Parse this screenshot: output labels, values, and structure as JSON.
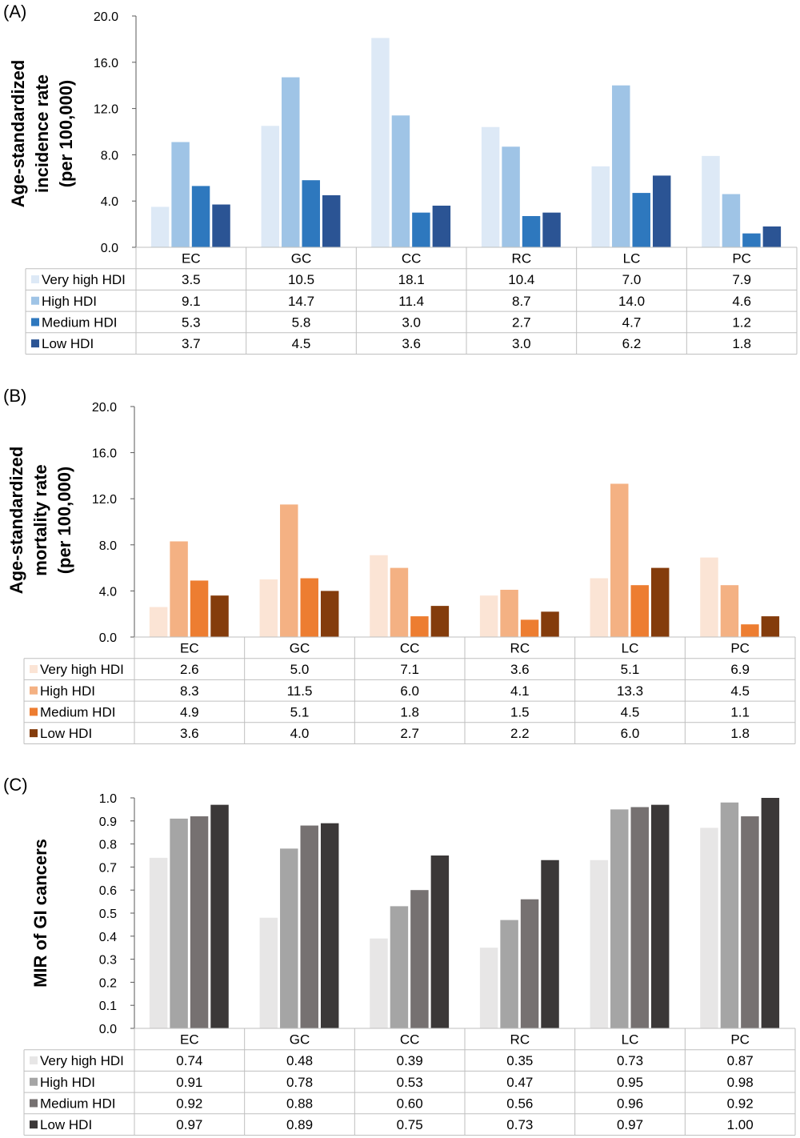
{
  "chart_data": [
    {
      "panel": "(A)",
      "type": "bar",
      "categories": [
        "EC",
        "GC",
        "CC",
        "RC",
        "LC",
        "PC"
      ],
      "ylabel_lines": [
        "Age-standardized",
        "incidence rate",
        "(per 100,000)"
      ],
      "ylim": [
        0,
        20
      ],
      "yticks": [
        "0.0",
        "4.0",
        "8.0",
        "12.0",
        "16.0",
        "20.0"
      ],
      "grid": false,
      "legend": "data-table",
      "series": [
        {
          "name": "Very high HDI",
          "color": "#dde9f6",
          "values": [
            3.5,
            10.5,
            18.1,
            10.4,
            7.0,
            7.9
          ],
          "labels": [
            "3.5",
            "10.5",
            "18.1",
            "10.4",
            "7.0",
            "7.9"
          ]
        },
        {
          "name": "High HDI",
          "color": "#9fc4e6",
          "values": [
            9.1,
            14.7,
            11.4,
            8.7,
            14.0,
            4.6
          ],
          "labels": [
            "9.1",
            "14.7",
            "11.4",
            "8.7",
            "14.0",
            "4.6"
          ]
        },
        {
          "name": "Medium HDI",
          "color": "#2e78be",
          "values": [
            5.3,
            5.8,
            3.0,
            2.7,
            4.7,
            1.2
          ],
          "labels": [
            "5.3",
            "5.8",
            "3.0",
            "2.7",
            "4.7",
            "1.2"
          ]
        },
        {
          "name": "Low HDI",
          "color": "#2b5494",
          "values": [
            3.7,
            4.5,
            3.6,
            3.0,
            6.2,
            1.8
          ],
          "labels": [
            "3.7",
            "4.5",
            "3.6",
            "3.0",
            "6.2",
            "1.8"
          ]
        }
      ]
    },
    {
      "panel": "(B)",
      "type": "bar",
      "categories": [
        "EC",
        "GC",
        "CC",
        "RC",
        "LC",
        "PC"
      ],
      "ylabel_lines": [
        "Age-standardized",
        "mortality rate",
        "(per 100,000)"
      ],
      "ylim": [
        0,
        20
      ],
      "yticks": [
        "0.0",
        "4.0",
        "8.0",
        "12.0",
        "16.0",
        "20.0"
      ],
      "grid": false,
      "legend": "data-table",
      "series": [
        {
          "name": "Very high HDI",
          "color": "#fbe4d5",
          "values": [
            2.6,
            5.0,
            7.1,
            3.6,
            5.1,
            6.9
          ],
          "labels": [
            "2.6",
            "5.0",
            "7.1",
            "3.6",
            "5.1",
            "6.9"
          ]
        },
        {
          "name": "High HDI",
          "color": "#f4b183",
          "values": [
            8.3,
            11.5,
            6.0,
            4.1,
            13.3,
            4.5
          ],
          "labels": [
            "8.3",
            "11.5",
            "6.0",
            "4.1",
            "13.3",
            "4.5"
          ]
        },
        {
          "name": "Medium HDI",
          "color": "#ed7d31",
          "values": [
            4.9,
            5.1,
            1.8,
            1.5,
            4.5,
            1.1
          ],
          "labels": [
            "4.9",
            "5.1",
            "1.8",
            "1.5",
            "4.5",
            "1.1"
          ]
        },
        {
          "name": "Low HDI",
          "color": "#843c0c",
          "values": [
            3.6,
            4.0,
            2.7,
            2.2,
            6.0,
            1.8
          ],
          "labels": [
            "3.6",
            "4.0",
            "2.7",
            "2.2",
            "6.0",
            "1.8"
          ]
        }
      ]
    },
    {
      "panel": "(C)",
      "type": "bar",
      "categories": [
        "EC",
        "GC",
        "CC",
        "RC",
        "LC",
        "PC"
      ],
      "ylabel_lines": [
        "MIR of GI cancers"
      ],
      "ylim": [
        0,
        1
      ],
      "yticks": [
        "0.0",
        "0.1",
        "0.2",
        "0.3",
        "0.4",
        "0.5",
        "0.6",
        "0.7",
        "0.8",
        "0.9",
        "1.0"
      ],
      "grid": false,
      "legend": "data-table",
      "series": [
        {
          "name": "Very high HDI",
          "color": "#e7e6e6",
          "values": [
            0.74,
            0.48,
            0.39,
            0.35,
            0.73,
            0.87
          ],
          "labels": [
            "0.74",
            "0.48",
            "0.39",
            "0.35",
            "0.73",
            "0.87"
          ]
        },
        {
          "name": "High HDI",
          "color": "#a5a5a5",
          "values": [
            0.91,
            0.78,
            0.53,
            0.47,
            0.95,
            0.98
          ],
          "labels": [
            "0.91",
            "0.78",
            "0.53",
            "0.47",
            "0.95",
            "0.98"
          ]
        },
        {
          "name": "Medium HDI",
          "color": "#767171",
          "values": [
            0.92,
            0.88,
            0.6,
            0.56,
            0.96,
            0.92
          ],
          "labels": [
            "0.92",
            "0.88",
            "0.60",
            "0.56",
            "0.96",
            "0.92"
          ]
        },
        {
          "name": "Low HDI",
          "color": "#3b3838",
          "values": [
            0.97,
            0.89,
            0.75,
            0.73,
            0.97,
            1.0
          ],
          "labels": [
            "0.97",
            "0.89",
            "0.75",
            "0.73",
            "0.97",
            "1.00"
          ]
        }
      ]
    }
  ]
}
